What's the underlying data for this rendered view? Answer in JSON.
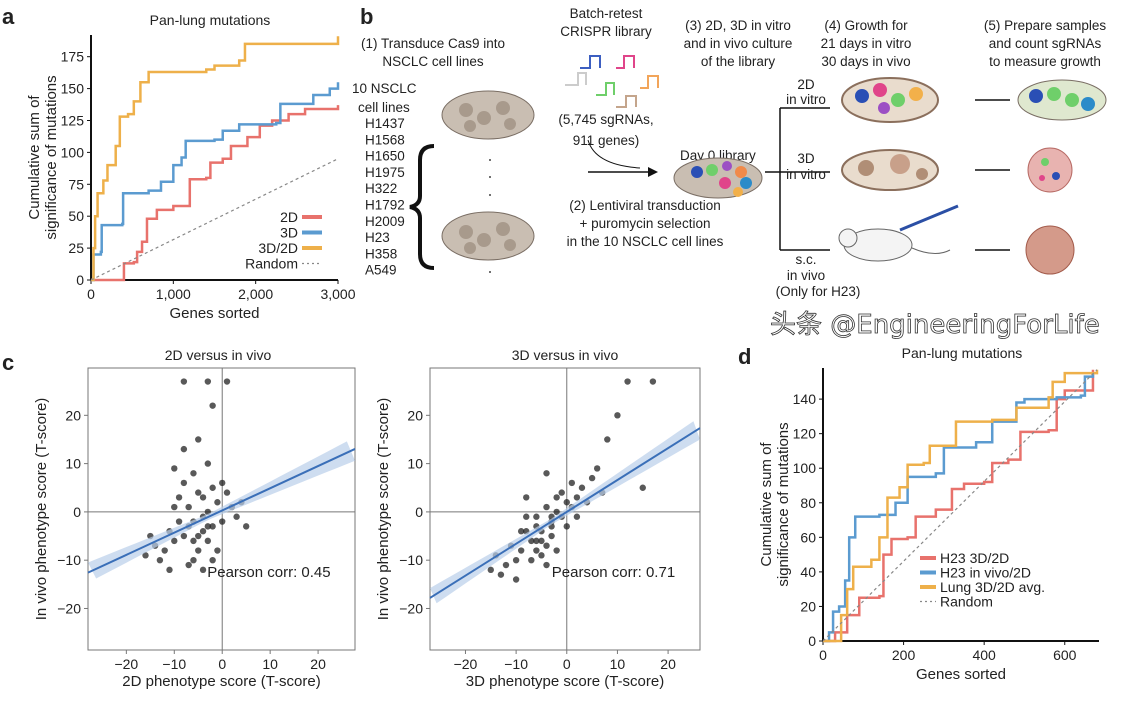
{
  "colors": {
    "red": "#e8726c",
    "blue": "#5b9bd0",
    "orange": "#eeb04a",
    "random": "#888888",
    "axis": "#111111",
    "fit": "#3a6fb8",
    "band": "#b9cfea"
  },
  "panel_labels": {
    "a": "a",
    "b": "b",
    "c": "c",
    "d": "d"
  },
  "panel_b": {
    "step1": [
      "(1) Transduce Cas9 into",
      "NSCLC cell lines"
    ],
    "cell_lines_header": [
      "10 NSCLC",
      "cell lines"
    ],
    "cell_lines": [
      "H1437",
      "H1568",
      "H1650",
      "H1975",
      "H322",
      "H1792",
      "H2009",
      "H23",
      "H358",
      "A549"
    ],
    "library_title": [
      "Batch-retest",
      "CRISPR library"
    ],
    "library_size": [
      "(5,745 sgRNAs,",
      "911 genes)"
    ],
    "day0": "Day 0 library",
    "step2": [
      "(2) Lentiviral transduction",
      "+ puromycin selection",
      "in the 10 NSCLC cell lines"
    ],
    "step3": [
      "(3) 2D, 3D in vitro",
      "and in vivo culture",
      "of the library"
    ],
    "step4": [
      "(4) Growth for",
      "21 days in vitro",
      "30 days in vivo"
    ],
    "step5": [
      "(5) Prepare samples",
      "and count sgRNAs",
      "to measure growth"
    ],
    "cond_2d": [
      "2D",
      "in vitro"
    ],
    "cond_3d": [
      "3D",
      "in vitro"
    ],
    "cond_vivo": [
      "s.c.",
      "in vivo",
      "(Only for H23)"
    ]
  },
  "watermark": "头条 @EngineeringForLife",
  "chart_data": [
    {
      "id": "a",
      "type": "line",
      "title": "Pan-lung mutations",
      "xlabel": "Genes sorted",
      "ylabel": [
        "Cumulative sum of",
        "significance of mutations"
      ],
      "xlim": [
        0,
        3000
      ],
      "ylim": [
        0,
        192
      ],
      "xticks": [
        0,
        1000,
        2000,
        3000
      ],
      "xtick_labels": [
        "0",
        "1,000",
        "2,000",
        "3,000"
      ],
      "yticks": [
        0,
        25,
        50,
        75,
        100,
        125,
        150,
        175
      ],
      "ytick_labels": [
        "0",
        "25",
        "50",
        "75",
        "100",
        "125",
        "150",
        "175"
      ],
      "legend": "bottom-right",
      "series": [
        {
          "name": "2D",
          "color": "#e8726c",
          "points": [
            [
              0,
              0
            ],
            [
              380,
              0
            ],
            [
              400,
              13
            ],
            [
              520,
              14
            ],
            [
              560,
              22
            ],
            [
              620,
              30
            ],
            [
              680,
              48
            ],
            [
              800,
              55
            ],
            [
              1000,
              58
            ],
            [
              1200,
              79
            ],
            [
              1400,
              80
            ],
            [
              1450,
              92
            ],
            [
              1600,
              95
            ],
            [
              1700,
              105
            ],
            [
              1900,
              112
            ],
            [
              2050,
              121
            ],
            [
              2200,
              125
            ],
            [
              2400,
              130
            ],
            [
              2600,
              134
            ],
            [
              3000,
              137
            ]
          ]
        },
        {
          "name": "3D",
          "color": "#5b9bd0",
          "points": [
            [
              0,
              0
            ],
            [
              30,
              20
            ],
            [
              120,
              22
            ],
            [
              130,
              43
            ],
            [
              380,
              44
            ],
            [
              390,
              68
            ],
            [
              700,
              70
            ],
            [
              850,
              77
            ],
            [
              1000,
              90
            ],
            [
              1100,
              96
            ],
            [
              1150,
              109
            ],
            [
              1500,
              110
            ],
            [
              1600,
              117
            ],
            [
              1800,
              122
            ],
            [
              2250,
              123
            ],
            [
              2300,
              138
            ],
            [
              2700,
              145
            ],
            [
              2900,
              150
            ],
            [
              3000,
              155
            ]
          ]
        },
        {
          "name": "3D/2D",
          "color": "#eeb04a",
          "points": [
            [
              0,
              0
            ],
            [
              30,
              25
            ],
            [
              50,
              50
            ],
            [
              80,
              68
            ],
            [
              150,
              78
            ],
            [
              200,
              90
            ],
            [
              300,
              105
            ],
            [
              350,
              128
            ],
            [
              450,
              130
            ],
            [
              520,
              140
            ],
            [
              600,
              155
            ],
            [
              700,
              163
            ],
            [
              1400,
              165
            ],
            [
              1500,
              168
            ],
            [
              1800,
              172
            ],
            [
              1870,
              185
            ],
            [
              3000,
              191
            ]
          ]
        },
        {
          "name": "Random",
          "color": "#888888",
          "dashed": true,
          "points": [
            [
              0,
              0
            ],
            [
              3000,
              95
            ]
          ]
        }
      ]
    },
    {
      "id": "c1",
      "type": "scatter",
      "title": "2D versus in vivo",
      "xlabel": "2D phenotype score (T-score)",
      "ylabel": "In vivo phenotype score (T-score)",
      "xlim": [
        -28,
        27.7
      ],
      "ylim": [
        -28.6,
        29.8
      ],
      "xticks": [
        -20,
        -10,
        0,
        10,
        20
      ],
      "xtick_labels": [
        "−20",
        "−10",
        "0",
        "10",
        "20"
      ],
      "yticks": [
        -20,
        -10,
        0,
        10,
        20
      ],
      "ytick_labels": [
        "−20",
        "−10",
        "0",
        "10",
        "20"
      ],
      "annotation": "Pearson corr: 0.45",
      "fit": {
        "slope": 0.46,
        "intercept": 0.3
      },
      "points": [
        [
          -6,
          -2
        ],
        [
          -4,
          -4
        ],
        [
          -8,
          -5
        ],
        [
          -3,
          0
        ],
        [
          -10,
          -6
        ],
        [
          -5,
          -8
        ],
        [
          -2,
          -3
        ],
        [
          -7,
          1
        ],
        [
          -12,
          -8
        ],
        [
          -1,
          2
        ],
        [
          -4,
          3
        ],
        [
          -9,
          -2
        ],
        [
          -6,
          -10
        ],
        [
          -3,
          -6
        ],
        [
          -11,
          -4
        ],
        [
          -14,
          -7
        ],
        [
          -5,
          4
        ],
        [
          -8,
          6
        ],
        [
          -2,
          5
        ],
        [
          0,
          -2
        ],
        [
          2,
          1
        ],
        [
          3,
          -1
        ],
        [
          -13,
          -10
        ],
        [
          -7,
          -11
        ],
        [
          -4,
          -12
        ],
        [
          -9,
          3
        ],
        [
          -6,
          8
        ],
        [
          -3,
          10
        ],
        [
          -1,
          -8
        ],
        [
          1,
          4
        ],
        [
          -15,
          -5
        ],
        [
          -10,
          1
        ],
        [
          -5,
          -5
        ],
        [
          -7,
          -3
        ],
        [
          -4,
          -1
        ],
        [
          -2,
          -10
        ],
        [
          -8,
          13
        ],
        [
          -5,
          15
        ],
        [
          -2,
          22
        ],
        [
          -8,
          27
        ],
        [
          -3,
          27
        ],
        [
          1,
          27
        ],
        [
          4,
          2
        ],
        [
          -11,
          -12
        ],
        [
          -16,
          -9
        ],
        [
          -6,
          -6
        ],
        [
          -3,
          -3
        ],
        [
          0,
          6
        ],
        [
          -10,
          9
        ],
        [
          5,
          -3
        ]
      ]
    },
    {
      "id": "c2",
      "type": "scatter",
      "title": "3D versus in vivo",
      "xlabel": "3D phenotype score (T-score)",
      "ylabel": "In vivo phenotype score (T-score)",
      "xlim": [
        -27,
        26.3
      ],
      "ylim": [
        -28.6,
        29.8
      ],
      "xticks": [
        -20,
        -10,
        0,
        10,
        20
      ],
      "xtick_labels": [
        "−20",
        "−10",
        "0",
        "10",
        "20"
      ],
      "yticks": [
        -20,
        -10,
        0,
        10,
        20
      ],
      "ytick_labels": [
        "−20",
        "−10",
        "0",
        "10",
        "20"
      ],
      "annotation": "Pearson corr: 0.71",
      "fit": {
        "slope": 0.66,
        "intercept": 0
      },
      "points": [
        [
          -5,
          -4
        ],
        [
          -3,
          -2
        ],
        [
          -7,
          -6
        ],
        [
          -2,
          0
        ],
        [
          -9,
          -8
        ],
        [
          -4,
          -7
        ],
        [
          -1,
          -1
        ],
        [
          -6,
          -3
        ],
        [
          -10,
          -10
        ],
        [
          0,
          2
        ],
        [
          1,
          1
        ],
        [
          -8,
          -4
        ],
        [
          -5,
          -9
        ],
        [
          -3,
          -5
        ],
        [
          -11,
          -7
        ],
        [
          -12,
          -11
        ],
        [
          -4,
          1
        ],
        [
          -6,
          -1
        ],
        [
          -2,
          3
        ],
        [
          2,
          3
        ],
        [
          3,
          5
        ],
        [
          4,
          2
        ],
        [
          -13,
          -13
        ],
        [
          -7,
          -10
        ],
        [
          -4,
          -11
        ],
        [
          -8,
          -1
        ],
        [
          -1,
          4
        ],
        [
          1,
          6
        ],
        [
          0,
          -3
        ],
        [
          5,
          7
        ],
        [
          -14,
          -9
        ],
        [
          -9,
          -4
        ],
        [
          -5,
          -6
        ],
        [
          -6,
          -8
        ],
        [
          -3,
          -1
        ],
        [
          -2,
          -8
        ],
        [
          6,
          9
        ],
        [
          8,
          15
        ],
        [
          10,
          20
        ],
        [
          12,
          27
        ],
        [
          17,
          27
        ],
        [
          15,
          5
        ],
        [
          -4,
          8
        ],
        [
          -10,
          -14
        ],
        [
          -15,
          -12
        ],
        [
          -6,
          -6
        ],
        [
          -3,
          -3
        ],
        [
          2,
          -1
        ],
        [
          -8,
          3
        ],
        [
          7,
          4
        ]
      ]
    },
    {
      "id": "d",
      "type": "line",
      "title": "Pan-lung mutations",
      "xlabel": "Genes sorted",
      "ylabel": [
        "Cumulative sum of",
        "significance of mutations"
      ],
      "xlim": [
        0,
        685
      ],
      "ylim": [
        0,
        158
      ],
      "xticks": [
        0,
        200,
        400,
        600
      ],
      "xtick_labels": [
        "0",
        "200",
        "400",
        "600"
      ],
      "yticks": [
        0,
        20,
        40,
        60,
        80,
        100,
        120,
        140
      ],
      "ytick_labels": [
        "0",
        "20",
        "40",
        "60",
        "80",
        "100",
        "120",
        "140"
      ],
      "legend": "bottom-right",
      "series": [
        {
          "name": "H23 3D/2D",
          "color": "#e8726c",
          "points": [
            [
              0,
              0
            ],
            [
              30,
              5
            ],
            [
              60,
              15
            ],
            [
              90,
              25
            ],
            [
              140,
              26
            ],
            [
              150,
              50
            ],
            [
              170,
              59
            ],
            [
              210,
              60
            ],
            [
              230,
              72
            ],
            [
              280,
              76
            ],
            [
              320,
              88
            ],
            [
              350,
              91
            ],
            [
              400,
              92
            ],
            [
              420,
              103
            ],
            [
              460,
              105
            ],
            [
              490,
              121
            ],
            [
              560,
              122
            ],
            [
              580,
              140
            ],
            [
              600,
              145
            ],
            [
              660,
              145
            ],
            [
              670,
              157
            ]
          ]
        },
        {
          "name": "H23 in vivo/2D",
          "color": "#5b9bd0",
          "points": [
            [
              0,
              0
            ],
            [
              15,
              5
            ],
            [
              25,
              17
            ],
            [
              40,
              20
            ],
            [
              55,
              35
            ],
            [
              65,
              60
            ],
            [
              80,
              72
            ],
            [
              140,
              73
            ],
            [
              180,
              80
            ],
            [
              210,
              95
            ],
            [
              280,
              97
            ],
            [
              300,
              112
            ],
            [
              380,
              115
            ],
            [
              420,
              127
            ],
            [
              470,
              127
            ],
            [
              480,
              138
            ],
            [
              500,
              140
            ],
            [
              580,
              141
            ],
            [
              640,
              142
            ],
            [
              650,
              153
            ],
            [
              670,
              155
            ]
          ]
        },
        {
          "name": "Lung 3D/2D avg.",
          "color": "#eeb04a",
          "points": [
            [
              0,
              0
            ],
            [
              40,
              0
            ],
            [
              45,
              15
            ],
            [
              60,
              30
            ],
            [
              75,
              43
            ],
            [
              120,
              47
            ],
            [
              140,
              60
            ],
            [
              160,
              83
            ],
            [
              190,
              89
            ],
            [
              210,
              102
            ],
            [
              250,
              103
            ],
            [
              265,
              113
            ],
            [
              300,
              113
            ],
            [
              330,
              127
            ],
            [
              420,
              128
            ],
            [
              480,
              135
            ],
            [
              560,
              141
            ],
            [
              570,
              150
            ],
            [
              600,
              155
            ],
            [
              680,
              157
            ]
          ]
        },
        {
          "name": "Random",
          "color": "#888888",
          "dashed": true,
          "points": [
            [
              0,
              0
            ],
            [
              680,
              157
            ]
          ]
        }
      ]
    }
  ]
}
